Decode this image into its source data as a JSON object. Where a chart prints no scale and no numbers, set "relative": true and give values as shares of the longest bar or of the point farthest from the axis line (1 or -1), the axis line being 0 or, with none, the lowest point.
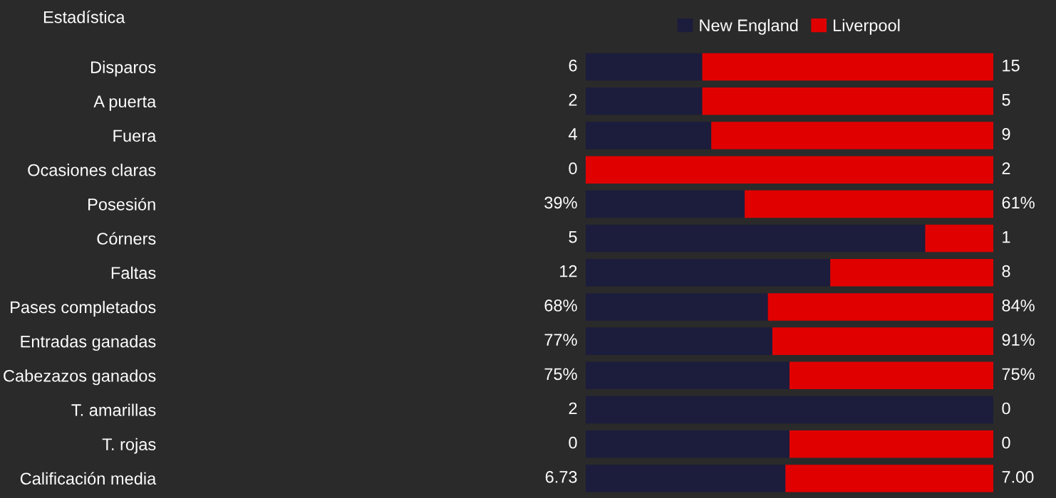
{
  "chart_data": {
    "type": "bar",
    "orientation": "horizontal",
    "stacked": true,
    "relative": true,
    "ylabel": "Estadística",
    "legend": "top",
    "categories": [
      "Disparos",
      "A puerta",
      "Fuera",
      "Ocasiones claras",
      "Posesión",
      "Córners",
      "Faltas",
      "Pases completados",
      "Entradas ganadas",
      "Cabezazos ganados",
      "T. amarillas",
      "T. rojas",
      "Calificación media"
    ],
    "series": [
      {
        "name": "New England",
        "color": "#1c1c3c",
        "values": [
          0.286,
          0.286,
          0.308,
          0,
          0.39,
          0.833,
          0.6,
          0.447,
          0.458,
          0.5,
          1,
          0.5,
          0.49
        ]
      },
      {
        "name": "Liverpool",
        "color": "#e00000",
        "values": [
          0.714,
          0.714,
          0.692,
          1,
          0.61,
          0.167,
          0.4,
          0.553,
          0.542,
          0.5,
          0,
          0.5,
          0.51
        ]
      }
    ],
    "annotations": [
      "6",
      "15",
      "2",
      "5",
      "4",
      "9",
      "0",
      "2",
      "39%",
      "61%",
      "5",
      "1",
      "12",
      "8",
      "68%",
      "84%",
      "77%",
      "91%",
      "75%",
      "75%",
      "2",
      "0",
      "0",
      "0",
      "6.73",
      "7.00"
    ]
  }
}
